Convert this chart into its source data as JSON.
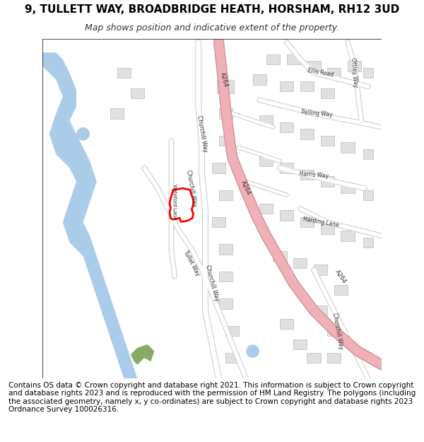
{
  "title": "9, TULLETT WAY, BROADBRIDGE HEATH, HORSHAM, RH12 3UD",
  "subtitle": "Map shows position and indicative extent of the property.",
  "footer": "Contains OS data © Crown copyright and database right 2021. This information is subject to Crown copyright and database rights 2023 and is reproduced with the permission of HM Land Registry. The polygons (including the associated geometry, namely x, y co-ordinates) are subject to Crown copyright and database rights 2023 Ordnance Survey 100026316.",
  "bg_color": "#f8f8ff",
  "map_bg": "#f0f0f5",
  "road_major_color": "#f0b0b8",
  "road_major_edge": "#d09098",
  "road_minor_color": "#ffffff",
  "road_outline_color": "#cccccc",
  "building_color": "#e0e0e0",
  "building_edge_color": "#bbbbbb",
  "water_color": "#aacce8",
  "green_color": "#88aa66",
  "plot_color": "#ff0000",
  "title_fontsize": 11,
  "subtitle_fontsize": 9,
  "footer_fontsize": 7.5,
  "label_fontsize": 6
}
